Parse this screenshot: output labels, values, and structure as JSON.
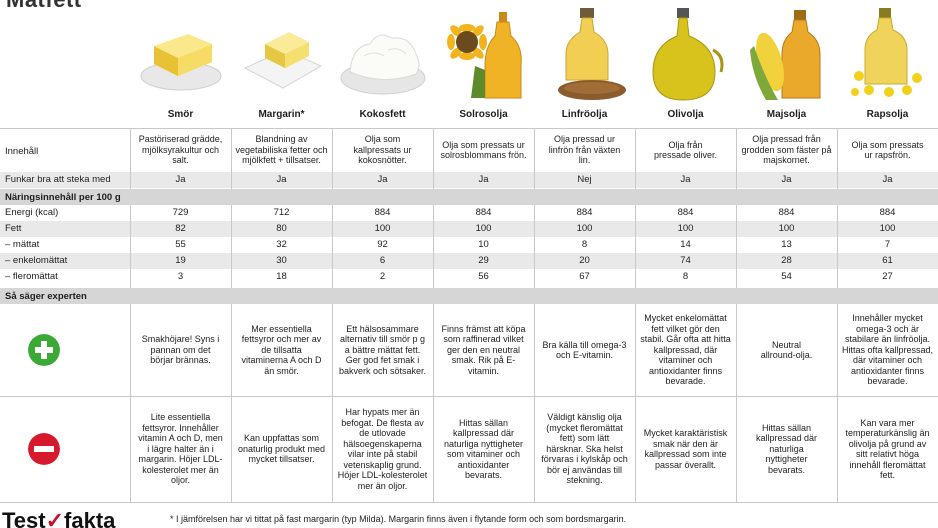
{
  "title": "Matfett",
  "products": [
    "Smör",
    "Margarin*",
    "Kokosfett",
    "Solrosolja",
    "Linfröolja",
    "Olivolja",
    "Majsolja",
    "Rapsolja"
  ],
  "rows": {
    "innehall": {
      "label": "Innehåll",
      "values": [
        "Pastöriserad grädde, mjölksyrakultur och salt.",
        "Blandning av vegetabiliska fetter och mjölkfett + tillsatser.",
        "Olja som kallpressats ur kokosnötter.",
        "Olja som pressats ur solrosblommans frön.",
        "Olja pressad ur linfrön från växten lin.",
        "Olja från pressade oliver.",
        "Olja pressad från grodden som fäster på majskornet.",
        "Olja som pressats ur rapsfrön."
      ]
    },
    "steka": {
      "label": "Funkar bra att steka med",
      "values": [
        "Ja",
        "Ja",
        "Ja",
        "Ja",
        "Nej",
        "Ja",
        "Ja",
        "Ja"
      ]
    }
  },
  "nutrition": {
    "section_label": "Näringsinnehåll per 100 g",
    "rows": [
      {
        "label": "Energi (kcal)",
        "values": [
          "729",
          "712",
          "884",
          "884",
          "884",
          "884",
          "884",
          "884"
        ]
      },
      {
        "label": "Fett",
        "values": [
          "82",
          "80",
          "100",
          "100",
          "100",
          "100",
          "100",
          "100"
        ]
      },
      {
        "label": "– mättat",
        "values": [
          "55",
          "32",
          "92",
          "10",
          "8",
          "14",
          "13",
          "7"
        ]
      },
      {
        "label": "– enkelomättat",
        "values": [
          "19",
          "30",
          "6",
          "29",
          "20",
          "74",
          "28",
          "61"
        ]
      },
      {
        "label": "– fleromättat",
        "values": [
          "3",
          "18",
          "2",
          "56",
          "67",
          "8",
          "54",
          "27"
        ]
      }
    ]
  },
  "expert": {
    "section_label": "Så säger experten",
    "plus_icon": "plus-circle-icon",
    "minus_icon": "minus-circle-icon",
    "plus": [
      "Smakhöjare! Syns i pannan om det börjar brännas.",
      "Mer essentiella fettsyror och mer av de tillsatta vitaminerna A och D än smör.",
      "Ett hälsosammare alternativ till smör p g a bättre mättat fett. Ger god fet smak i bakverk och sötsaker.",
      "Finns främst att köpa som raffinerad vilket ger den en neutral smak. Rik på E-vitamin.",
      "Bra källa till omega-3 och E-vitamin.",
      "Mycket enkelomättat fett vilket gör den stabil. Går ofta att hitta kallpressad, där vitaminer och antioxidanter finns bevarade.",
      "Neutral allround-olja.",
      "Innehåller mycket omega-3 och är stabilare än linfröolja. Hittas ofta kallpressad, där vitaminer och antioxidanter finns bevarade."
    ],
    "minus": [
      "Lite essentiella fettsyror. Innehåller vitamin A och D, men i lägre halter än i margarin. Höjer LDL-kolesterolet mer än oljor.",
      "Kan uppfattas som onaturlig produkt med mycket tillsatser.",
      "Har hypats mer än befogat. De flesta av de utlovade hälsoegenskaperna vilar inte på stabil vetenskaplig grund. Höjer LDL-kolesterolet mer än oljor.",
      "Hittas sällan kallpressad där naturliga nyttigheter som vitaminer och antioxidanter bevarats.",
      "Väldigt känslig olja (mycket fleromättat fett) som lätt härsknar. Ska helst förvaras i kylskåp och bör ej användas till stekning.",
      "Mycket karaktäristisk smak när den är kallpressad som inte passar överallt.",
      "Hittas sällan kallpressad där naturliga nyttigheter bevarats.",
      "Kan vara mer temperaturkänslig än olivolja på grund av sitt relativt höga innehåll fleromättat fett."
    ]
  },
  "footer": {
    "logo_left": "Test",
    "logo_right": "fakta",
    "footnote": "* I jämförelsen har vi tittat på fast margarin (typ Milda). Margarin finns även i flytande form och som bordsmargarin."
  },
  "colors": {
    "plus": "#3aa935",
    "minus": "#d7192d",
    "tint": "#e9e9e9",
    "section": "#d6d6d6",
    "brand_red": "#c8102e"
  }
}
